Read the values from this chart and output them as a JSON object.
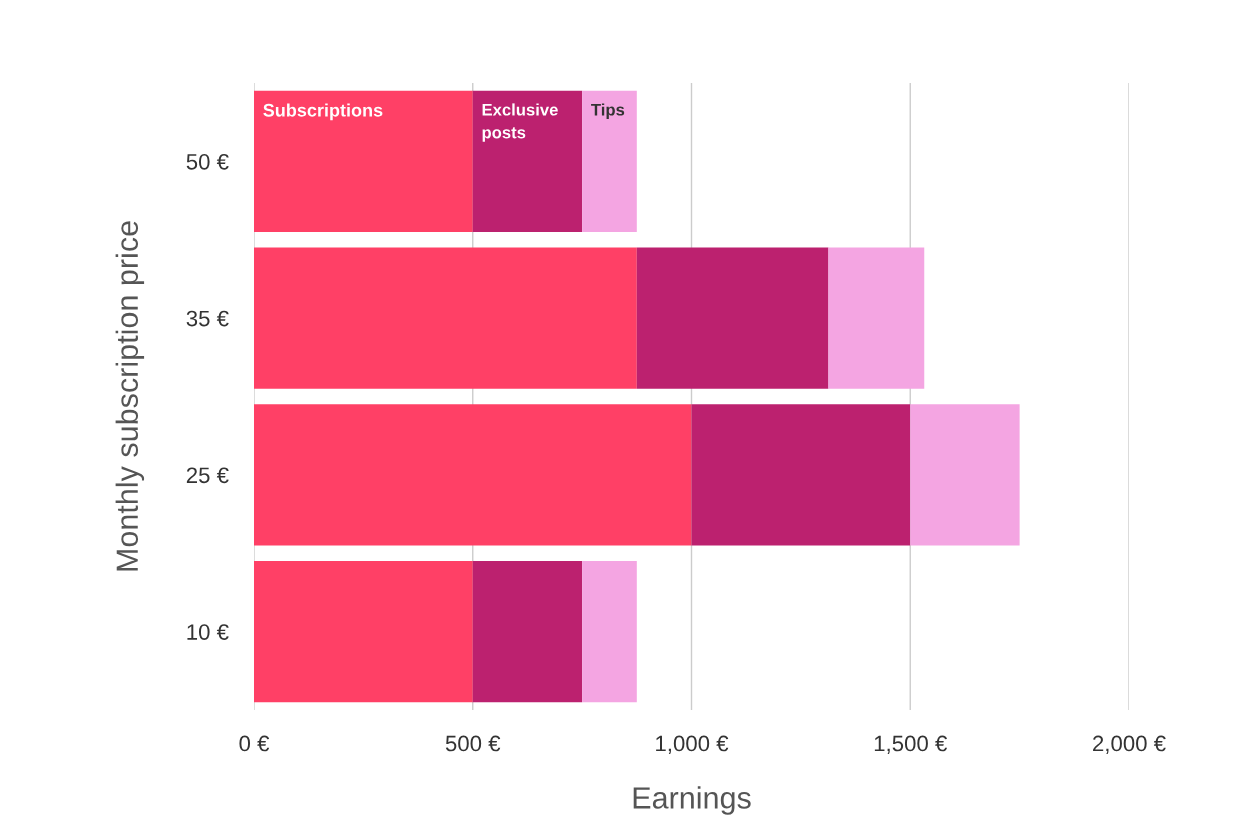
{
  "chart_data": {
    "type": "bar",
    "orientation": "horizontal",
    "stacked": true,
    "xlabel": "Earnings",
    "ylabel": "Monthly subscription price",
    "categories": [
      "50 €",
      "35 €",
      "25 €",
      "10 €"
    ],
    "series": [
      {
        "name": "Subscriptions",
        "color": "#ff4066",
        "values": [
          500,
          875,
          1000,
          500
        ]
      },
      {
        "name": "Exclusive posts",
        "color": "#bc216f",
        "values": [
          250,
          438,
          500,
          250
        ]
      },
      {
        "name": "Tips",
        "color": "#f4a5e2",
        "values": [
          125,
          219,
          250,
          125
        ]
      }
    ],
    "xlim": [
      0,
      2000
    ],
    "xticks": [
      {
        "value": 0,
        "label": "0 €"
      },
      {
        "value": 500,
        "label": "500 €"
      },
      {
        "value": 1000,
        "label": "1,000 €"
      },
      {
        "value": 1500,
        "label": "1,500 €"
      },
      {
        "value": 2000,
        "label": "2,000 €"
      }
    ],
    "grid": "x",
    "legend": false
  }
}
